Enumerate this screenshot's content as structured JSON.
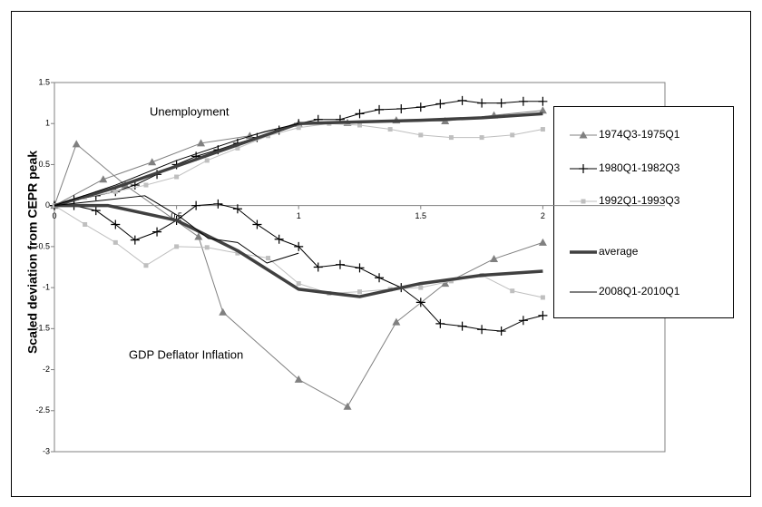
{
  "chart_data": {
    "type": "line",
    "ylabel": "Scaled deviation from CEPR peak",
    "annotations": [
      "Unemployment",
      "GDP Deflator Inflation"
    ],
    "xlim": [
      0,
      2.5
    ],
    "xticks": [
      0,
      0.5,
      1,
      1.5,
      2
    ],
    "ylim": [
      -3,
      1.5
    ],
    "yticks": [
      1.5,
      1,
      0.5,
      0,
      -0.5,
      -1,
      -1.5,
      -2,
      -2.5,
      -3
    ],
    "series": [
      {
        "name": "1974Q3-1975Q1",
        "color": "#808080",
        "marker": "triangle",
        "width": 1,
        "unemployment": {
          "x": [
            0,
            0.2,
            0.4,
            0.6,
            0.8,
            1.0,
            1.2,
            1.4,
            1.6,
            1.8,
            2.0
          ],
          "values": [
            0,
            0.32,
            0.53,
            0.76,
            0.85,
            1.0,
            1.01,
            1.04,
            1.03,
            1.1,
            1.16
          ]
        },
        "inflation": {
          "x": [
            0,
            0.09,
            0.29,
            0.59,
            0.69,
            1.0,
            1.2,
            1.4,
            1.6,
            1.8,
            2.0
          ],
          "values": [
            0,
            0.75,
            0.25,
            -0.38,
            -1.3,
            -2.12,
            -2.45,
            -1.42,
            -0.95,
            -0.65,
            -0.45
          ]
        }
      },
      {
        "name": "1980Q1-1982Q3",
        "color": "#000000",
        "marker": "cross",
        "width": 1,
        "unemployment": {
          "x": [
            0,
            0.08,
            0.17,
            0.25,
            0.33,
            0.42,
            0.5,
            0.58,
            0.67,
            0.75,
            0.83,
            0.92,
            1.0,
            1.08,
            1.17,
            1.25,
            1.33,
            1.42,
            1.5,
            1.58,
            1.67,
            1.75,
            1.83,
            1.92,
            2.0
          ],
          "values": [
            0,
            0.07,
            0.12,
            0.17,
            0.25,
            0.38,
            0.5,
            0.6,
            0.68,
            0.76,
            0.83,
            0.92,
            1.0,
            1.05,
            1.05,
            1.12,
            1.17,
            1.18,
            1.2,
            1.24,
            1.28,
            1.25,
            1.25,
            1.27,
            1.27
          ]
        },
        "inflation": {
          "x": [
            0,
            0.08,
            0.17,
            0.25,
            0.33,
            0.42,
            0.5,
            0.58,
            0.67,
            0.75,
            0.83,
            0.92,
            1.0,
            1.08,
            1.17,
            1.25,
            1.33,
            1.42,
            1.5,
            1.58,
            1.67,
            1.75,
            1.83,
            1.92,
            2.0
          ],
          "values": [
            0,
            0,
            -0.06,
            -0.23,
            -0.42,
            -0.32,
            -0.18,
            0,
            0.02,
            -0.04,
            -0.23,
            -0.41,
            -0.5,
            -0.75,
            -0.72,
            -0.76,
            -0.88,
            -1.0,
            -1.18,
            -1.44,
            -1.47,
            -1.51,
            -1.53,
            -1.4,
            -1.34
          ]
        }
      },
      {
        "name": "1992Q1-1993Q3",
        "color": "#bfbfbf",
        "marker": "square",
        "width": 1,
        "unemployment": {
          "x": [
            0,
            0.125,
            0.25,
            0.375,
            0.5,
            0.625,
            0.75,
            0.875,
            1.0,
            1.125,
            1.25,
            1.375,
            1.5,
            1.625,
            1.75,
            1.875,
            2.0
          ],
          "values": [
            0,
            0.1,
            0.17,
            0.25,
            0.35,
            0.55,
            0.7,
            0.85,
            0.95,
            1.0,
            0.98,
            0.93,
            0.86,
            0.83,
            0.83,
            0.86,
            0.93
          ]
        },
        "inflation": {
          "x": [
            0,
            0.125,
            0.25,
            0.375,
            0.5,
            0.625,
            0.75,
            0.875,
            1.0,
            1.125,
            1.25,
            1.375,
            1.5,
            1.625,
            1.75,
            1.875,
            2.0
          ],
          "values": [
            0,
            -0.23,
            -0.45,
            -0.73,
            -0.5,
            -0.51,
            -0.58,
            -0.64,
            -0.95,
            -1.07,
            -1.05,
            -1.02,
            -1.0,
            -0.92,
            -0.85,
            -1.04,
            -1.12
          ]
        }
      },
      {
        "name": "average",
        "color": "#404040",
        "marker": null,
        "width": 3.5,
        "unemployment": {
          "x": [
            0,
            0.25,
            0.5,
            0.75,
            1.0,
            1.25,
            1.5,
            1.75,
            2.0
          ],
          "values": [
            0,
            0.22,
            0.48,
            0.74,
            1.0,
            1.02,
            1.04,
            1.07,
            1.12
          ]
        },
        "inflation": {
          "x": [
            0,
            0.22,
            0.5,
            0.75,
            1.0,
            1.25,
            1.5,
            1.75,
            2.0
          ],
          "values": [
            0,
            0,
            -0.18,
            -0.55,
            -1.02,
            -1.11,
            -0.95,
            -0.85,
            -0.8
          ]
        }
      },
      {
        "name": "2008Q1-2010Q1",
        "color": "#000000",
        "marker": null,
        "width": 1,
        "unemployment": {
          "x": [
            0,
            0.25,
            0.5,
            0.75,
            0.86,
            1.0
          ],
          "values": [
            0,
            0.25,
            0.55,
            0.8,
            0.9,
            1.0
          ]
        },
        "inflation": {
          "x": [
            0,
            0.37,
            0.52,
            0.63,
            0.75,
            0.87,
            1.0
          ],
          "values": [
            0,
            0.12,
            -0.15,
            -0.4,
            -0.45,
            -0.7,
            -0.58
          ]
        }
      }
    ]
  }
}
